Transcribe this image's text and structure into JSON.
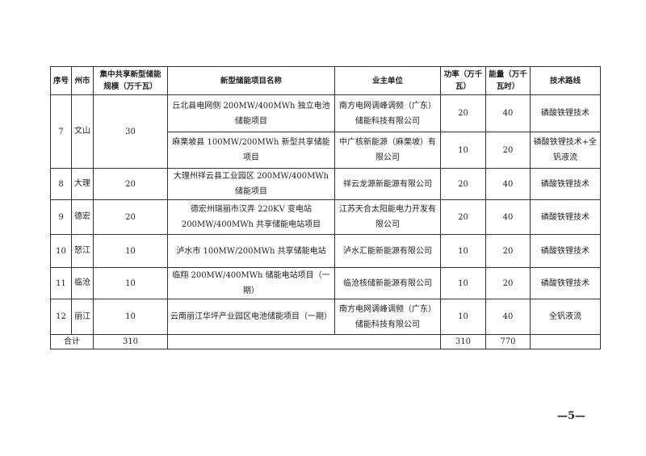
{
  "headers": [
    "序号",
    "州市",
    "集中共享新型储能规模（万千瓦）",
    "新型储能项目名称",
    "业主单位",
    "功率（万千瓦）",
    "能量（万千瓦时）",
    "技术路线"
  ],
  "rows": [
    {
      "no": "7",
      "city": "文山",
      "scale": "30",
      "projects": [
        {
          "name": "丘北县电网侧 200MW/400MWh 独立电池储能项目",
          "owner": "南方电网调峰调频（广东）储能科技有限公司",
          "power": "20",
          "energy": "40",
          "tech": "磷酸铁锂技术"
        },
        {
          "name": "麻栗坡县 100MW/200MWh 新型共享储能项目",
          "owner": "中广核新能源（麻栗坡）有限公司",
          "power": "10",
          "energy": "20",
          "tech": "磷酸铁锂技术+全钒液流"
        }
      ]
    },
    {
      "no": "8",
      "city": "大理",
      "scale": "20",
      "projects": [
        {
          "name": "大理州祥云县工业园区 200MW/400MWh 储能项目",
          "owner": "祥云龙源新能源有限公司",
          "power": "20",
          "energy": "40",
          "tech": "磷酸铁锂技术"
        }
      ]
    },
    {
      "no": "9",
      "city": "德宏",
      "scale": "20",
      "projects": [
        {
          "name": "德宏州瑞丽市汉弄 220KV 变电站 200MW/400MWh 共享储能电站项目",
          "owner": "江苏天合太阳能电力开发有限公司",
          "power": "20",
          "energy": "40",
          "tech": "磷酸铁锂技术"
        }
      ]
    },
    {
      "no": "10",
      "city": "怒江",
      "scale": "10",
      "projects": [
        {
          "name": "泸水市 100MW/200MWh 共享储能电站",
          "owner": "泸水汇能新能源有限公司",
          "power": "10",
          "energy": "20",
          "tech": "磷酸铁锂技术"
        }
      ]
    },
    {
      "no": "11",
      "city": "临沧",
      "scale": "10",
      "projects": [
        {
          "name": "临翔 200MW/400MWh 储能电站项目（一期）",
          "owner": "临沧核储新能源有限公司",
          "power": "10",
          "energy": "20",
          "tech": "磷酸铁锂技术"
        }
      ]
    },
    {
      "no": "12",
      "city": "丽江",
      "scale": "10",
      "projects": [
        {
          "name": "云南丽江华坪产业园区电池储能项目（一期）",
          "owner": "南方电网调峰调频（广东）储能科技有限公司",
          "power": "10",
          "energy": "40",
          "tech": "全钒液流"
        }
      ]
    }
  ],
  "total": {
    "label": "合计",
    "scale": "310",
    "power": "310",
    "energy": "770"
  },
  "page_number": "—5—"
}
